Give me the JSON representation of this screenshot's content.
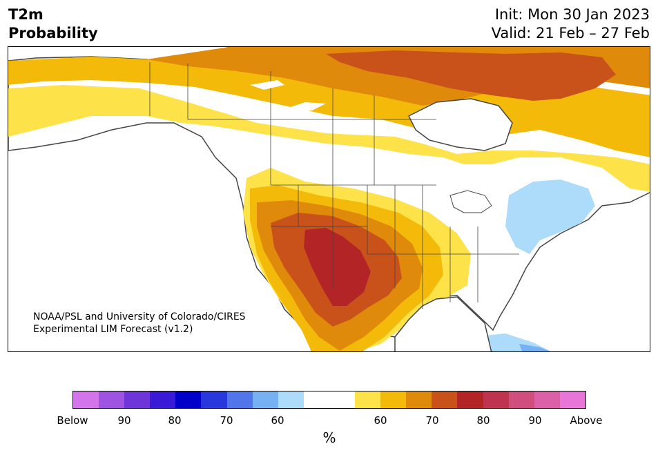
{
  "header": {
    "title_line1": "T2m",
    "title_line2": "Probability",
    "init": "Init: Mon 30 Jan 2023",
    "valid": "Valid: 21 Feb – 27 Feb"
  },
  "credit": {
    "line1": "NOAA/PSL and University of Colorado/CIRES",
    "line2": "Experimental LIM Forecast (v1.2)"
  },
  "colors": {
    "land": "#ffffff",
    "border": "#444444",
    "below_60": "#acdcfa",
    "below_70": "#76b2f3",
    "above_60": "#fde24a",
    "above_70": "#f4ba0a",
    "above_75": "#e08a0c",
    "above_80": "#c8521a",
    "above_85": "#b22426"
  },
  "colorbar": {
    "colors": [
      "#d474eb",
      "#9e54e0",
      "#6e36d9",
      "#3a1ad6",
      "#0000c8",
      "#2838dc",
      "#5276ea",
      "#76b2f3",
      "#acdcfa",
      "#ffffff",
      "#ffffff",
      "#fde24a",
      "#f4ba0a",
      "#e08a0c",
      "#c8521a",
      "#b22426",
      "#be3450",
      "#d04e7c",
      "#dc60a8",
      "#e876d8"
    ],
    "ticks": [
      "Below",
      "90",
      "80",
      "70",
      "60",
      "60",
      "70",
      "80",
      "90",
      "Above"
    ],
    "unit": "%"
  }
}
